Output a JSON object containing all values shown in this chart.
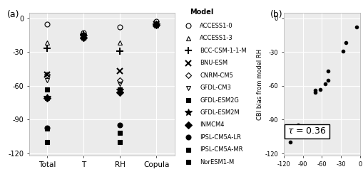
{
  "models": [
    "ACCESS1-0",
    "ACCESS1-3",
    "BCC-CSM-1-1-M",
    "BNU-ESM",
    "CNRM-CM5",
    "GFDL-CM3",
    "GFDL-ESM2G",
    "GFDL-ESM2M",
    "INMCM4",
    "IPSL-CM5A-LR",
    "IPSL-CM5A-MR",
    "NorESM1-M"
  ],
  "Total": [
    -5,
    -22,
    -27,
    -50,
    -50,
    -55,
    -63,
    -70,
    -71,
    -97,
    -98,
    -110
  ],
  "T": [
    -13,
    -14,
    -15,
    -16,
    -15,
    -15,
    -16,
    -16,
    -17,
    -17,
    -17,
    -17
  ],
  "RH": [
    -8,
    -22,
    -29,
    -47,
    -55,
    -58,
    -63,
    -64,
    -66,
    -95,
    -102,
    -110
  ],
  "Copula": [
    -3,
    -5,
    -5,
    -5,
    -5,
    -5,
    -5,
    -6,
    -6,
    -5,
    -5,
    -5
  ],
  "scatter_x": [
    -5,
    -22,
    -27,
    -50,
    -50,
    -55,
    -63,
    -70,
    -71,
    -97,
    -98,
    -110
  ],
  "scatter_y": [
    -8,
    -22,
    -29,
    -47,
    -55,
    -58,
    -63,
    -64,
    -66,
    -95,
    -102,
    -110
  ],
  "tau": "0.36",
  "panel_a_label": "(a)",
  "panel_b_label": "(b)",
  "ylabel_b": "CBI bias from model RH",
  "background_color": "#ebebeb",
  "grid_color": "white"
}
